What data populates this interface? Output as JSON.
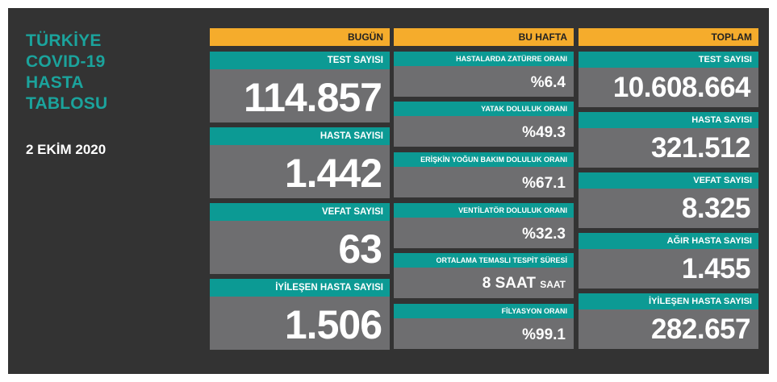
{
  "header": {
    "title_lines": [
      "TÜRKİYE",
      "COVID-19",
      "HASTA",
      "TABLOSU"
    ],
    "date": "2 EKİM 2020"
  },
  "columns": {
    "today": "BUGÜN",
    "week": "BU HAFTA",
    "total": "TOPLAM"
  },
  "today": [
    {
      "label": "TEST SAYISI",
      "value": "114.857"
    },
    {
      "label": "HASTA SAYISI",
      "value": "1.442"
    },
    {
      "label": "VEFAT SAYISI",
      "value": "63"
    },
    {
      "label": "İYİLEŞEN HASTA SAYISI",
      "value": "1.506"
    }
  ],
  "week": [
    {
      "label": "HASTALARDA ZATÜRRE ORANI",
      "value": "%6.4"
    },
    {
      "label": "YATAK DOLULUK ORANI",
      "value": "%49.3"
    },
    {
      "label": "ERİŞKİN YOĞUN BAKIM DOLULUK ORANI",
      "value": "%67.1"
    },
    {
      "label": "VENTİLATÖR DOLULUK ORANI",
      "value": "%32.3"
    },
    {
      "label": "ORTALAMA TEMASLI TESPİT SÜRESİ",
      "value": "8 SAAT",
      "unit": "SAAT"
    },
    {
      "label": "FİLYASYON ORANI",
      "value": "%99.1"
    }
  ],
  "total": [
    {
      "label": "TEST SAYISI",
      "value": "10.608.664"
    },
    {
      "label": "HASTA SAYISI",
      "value": "321.512"
    },
    {
      "label": "VEFAT SAYISI",
      "value": "8.325"
    },
    {
      "label": "AĞIR HASTA SAYISI",
      "value": "1.455"
    },
    {
      "label": "İYİLEŞEN HASTA SAYISI",
      "value": "282.657"
    }
  ],
  "colors": {
    "background": "#333333",
    "header_accent": "#f5ac2c",
    "label_teal": "#0c9a94",
    "value_gray": "#6e6e70",
    "title_teal": "#1ba39c"
  }
}
